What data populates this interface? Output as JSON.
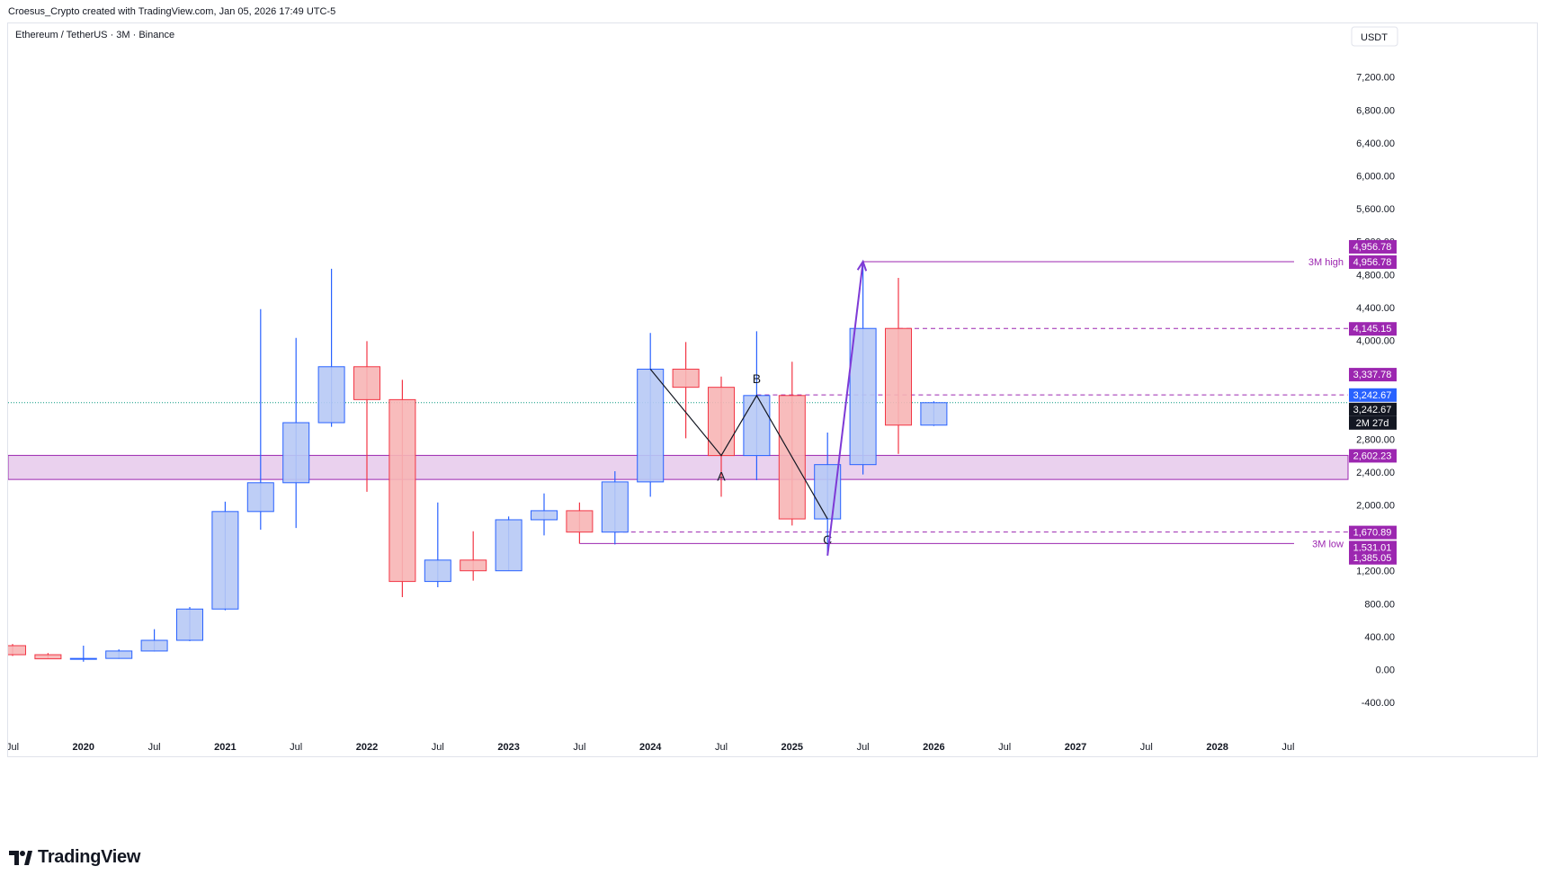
{
  "header": {
    "credit": "Croesus_Crypto created with TradingView.com, Jan 05, 2026 17:49 UTC-5"
  },
  "footer": {
    "brand": "TradingView"
  },
  "colors": {
    "bull_fill": "#b7c9f5",
    "bull_border": "#2962ff",
    "bear_fill": "#f7b5b5",
    "bear_border": "#f23645",
    "purple": "#9c27b0",
    "zone_fill": "#e1bee7",
    "price_line": "#089981",
    "countdown_bg": "#131722",
    "last_price_bg": "#2962ff"
  },
  "chart_data": {
    "type": "candlestick",
    "title": "Ethereum / TetherUS · 3M · Binance",
    "currency": "USDT",
    "y_ticks": [
      "-400.00",
      "0.00",
      "400.00",
      "800.00",
      "1,200.00",
      "2,000.00",
      "2,400.00",
      "2,800.00",
      "4,000.00",
      "4,400.00",
      "4,800.00",
      "5,200.00",
      "5,600.00",
      "6,000.00",
      "6,400.00",
      "6,800.00",
      "7,200.00"
    ],
    "x_ticks": [
      {
        "label": "Jul",
        "date": "2019-07",
        "bold": false
      },
      {
        "label": "2020",
        "date": "2020-01",
        "bold": true
      },
      {
        "label": "Jul",
        "date": "2020-07",
        "bold": false
      },
      {
        "label": "2021",
        "date": "2021-01",
        "bold": true
      },
      {
        "label": "Jul",
        "date": "2021-07",
        "bold": false
      },
      {
        "label": "2022",
        "date": "2022-01",
        "bold": true
      },
      {
        "label": "Jul",
        "date": "2022-07",
        "bold": false
      },
      {
        "label": "2023",
        "date": "2023-01",
        "bold": true
      },
      {
        "label": "Jul",
        "date": "2023-07",
        "bold": false
      },
      {
        "label": "2024",
        "date": "2024-01",
        "bold": true
      },
      {
        "label": "Jul",
        "date": "2024-07",
        "bold": false
      },
      {
        "label": "2025",
        "date": "2025-01",
        "bold": true
      },
      {
        "label": "Jul",
        "date": "2025-07",
        "bold": false
      },
      {
        "label": "2026",
        "date": "2026-01",
        "bold": true
      },
      {
        "label": "Jul",
        "date": "2026-07",
        "bold": false
      },
      {
        "label": "2027",
        "date": "2027-01",
        "bold": true
      },
      {
        "label": "Jul",
        "date": "2027-07",
        "bold": false
      },
      {
        "label": "2028",
        "date": "2028-01",
        "bold": true
      },
      {
        "label": "Jul",
        "date": "2028-07",
        "bold": false
      }
    ],
    "candles": [
      {
        "date": "2019-07",
        "open": 290,
        "high": 310,
        "low": 165,
        "close": 180
      },
      {
        "date": "2019-10",
        "open": 180,
        "high": 200,
        "low": 130,
        "close": 130
      },
      {
        "date": "2020-01",
        "open": 130,
        "high": 290,
        "low": 95,
        "close": 135
      },
      {
        "date": "2020-04",
        "open": 135,
        "high": 245,
        "low": 130,
        "close": 225
      },
      {
        "date": "2020-07",
        "open": 225,
        "high": 490,
        "low": 220,
        "close": 355
      },
      {
        "date": "2020-10",
        "open": 355,
        "high": 760,
        "low": 345,
        "close": 735
      },
      {
        "date": "2021-01",
        "open": 735,
        "high": 2040,
        "low": 720,
        "close": 1920
      },
      {
        "date": "2021-04",
        "open": 1920,
        "high": 4380,
        "low": 1700,
        "close": 2270
      },
      {
        "date": "2021-07",
        "open": 2270,
        "high": 4030,
        "low": 1720,
        "close": 3000
      },
      {
        "date": "2021-10",
        "open": 3000,
        "high": 4870,
        "low": 2950,
        "close": 3680
      },
      {
        "date": "2022-01",
        "open": 3680,
        "high": 3990,
        "low": 2160,
        "close": 3280
      },
      {
        "date": "2022-04",
        "open": 3280,
        "high": 3520,
        "low": 880,
        "close": 1070
      },
      {
        "date": "2022-07",
        "open": 1070,
        "high": 2030,
        "low": 1000,
        "close": 1330
      },
      {
        "date": "2022-10",
        "open": 1330,
        "high": 1680,
        "low": 1080,
        "close": 1200
      },
      {
        "date": "2023-01",
        "open": 1200,
        "high": 1860,
        "low": 1200,
        "close": 1820
      },
      {
        "date": "2023-04",
        "open": 1820,
        "high": 2140,
        "low": 1630,
        "close": 1930
      },
      {
        "date": "2023-07",
        "open": 1930,
        "high": 2030,
        "low": 1530,
        "close": 1670
      },
      {
        "date": "2023-10",
        "open": 1670,
        "high": 2410,
        "low": 1520,
        "close": 2280
      },
      {
        "date": "2024-01",
        "open": 2280,
        "high": 4090,
        "low": 2100,
        "close": 3650
      },
      {
        "date": "2024-04",
        "open": 3650,
        "high": 3980,
        "low": 2810,
        "close": 3430
      },
      {
        "date": "2024-07",
        "open": 3430,
        "high": 3560,
        "low": 2100,
        "close": 2600
      },
      {
        "date": "2024-10",
        "open": 2600,
        "high": 4110,
        "low": 2300,
        "close": 3330
      },
      {
        "date": "2025-01",
        "open": 3330,
        "high": 3740,
        "low": 1750,
        "close": 1830
      },
      {
        "date": "2025-04",
        "open": 1830,
        "high": 2880,
        "low": 1385,
        "close": 2490
      },
      {
        "date": "2025-07",
        "open": 2490,
        "high": 4956.78,
        "low": 2370,
        "close": 4145.15
      },
      {
        "date": "2025-10",
        "open": 4145.15,
        "high": 4760,
        "low": 2620,
        "close": 2970
      },
      {
        "date": "2026-01",
        "open": 2970,
        "high": 3260,
        "low": 2960,
        "close": 3242.67
      }
    ],
    "zone": {
      "low": 2310,
      "high": 2602.23
    },
    "horizontal_levels": [
      {
        "value": 4956.78,
        "style": "solid",
        "start": "2025-07",
        "label": "3M high"
      },
      {
        "value": 4145.15,
        "style": "dashed",
        "start": "2025-10"
      },
      {
        "value": 3337.78,
        "style": "dashed",
        "start": "2024-10"
      },
      {
        "value": 1670.89,
        "style": "dashed",
        "start": "2023-10"
      },
      {
        "value": 1531.01,
        "style": "solid",
        "start": "2023-07",
        "label": "3M low"
      }
    ],
    "last_price": 3242.67,
    "countdown": "2M 27d",
    "price_labels": [
      {
        "value": 4956.78,
        "text": "4,956.78",
        "kind": "purple",
        "offset": -17
      },
      {
        "value": 4956.78,
        "text": "4,956.78",
        "kind": "purple",
        "offset": 0
      },
      {
        "value": 4145.15,
        "text": "4,145.15",
        "kind": "purple",
        "offset": 0
      },
      {
        "value": 3337.78,
        "text": "3,337.78",
        "kind": "purple",
        "offset": -23
      },
      {
        "value": 3242.67,
        "text": "3,242.67",
        "kind": "blue",
        "offset": -9
      },
      {
        "value": 3242.67,
        "text": "3,242.67",
        "kind": "dark",
        "offset": 7
      },
      {
        "value": 2602.23,
        "text": "2,602.23",
        "kind": "purple",
        "offset": 0
      },
      {
        "value": 1670.89,
        "text": "1,670.89",
        "kind": "purple",
        "offset": 0
      },
      {
        "value": 1531.01,
        "text": "1,531.01",
        "kind": "purple",
        "offset": 4
      },
      {
        "value": 1385.05,
        "text": "1,385.05",
        "kind": "purple",
        "offset": 2
      }
    ],
    "abc_pattern": [
      {
        "date": "2024-01",
        "value": 3650,
        "label": ""
      },
      {
        "date": "2024-07",
        "value": 2600,
        "label": "A"
      },
      {
        "date": "2024-10",
        "value": 3330,
        "label": "B"
      },
      {
        "date": "2025-04",
        "value": 1830,
        "label": "C"
      }
    ],
    "arrow": {
      "from": {
        "date": "2025-04",
        "value": 1385
      },
      "to": {
        "date": "2025-07",
        "value": 4956.78
      }
    }
  }
}
